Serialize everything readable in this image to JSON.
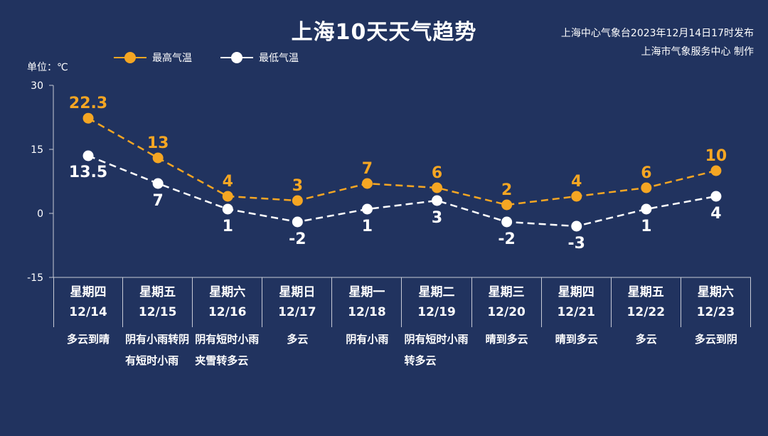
{
  "title": "上海10天天气趋势",
  "source_line1": "上海中心气象台2023年12月14日17时发布",
  "source_line2": "上海市气象服务中心 制作",
  "unit_label": "单位：℃",
  "colors": {
    "background": "#21335f",
    "high": "#f5a623",
    "low": "#ffffff"
  },
  "chart_data": {
    "type": "line",
    "ylim": [
      -15,
      30
    ],
    "yticks": [
      "30",
      "15",
      "0",
      "-15"
    ],
    "categories": [
      "12/14",
      "12/15",
      "12/16",
      "12/17",
      "12/18",
      "12/19",
      "12/20",
      "12/21",
      "12/22",
      "12/23"
    ],
    "series": [
      {
        "name": "最高气温",
        "values": [
          22.3,
          13,
          4,
          3,
          7,
          6,
          2,
          4,
          6,
          10
        ],
        "labels": [
          "22.3",
          "13",
          "4",
          "3",
          "7",
          "6",
          "2",
          "4",
          "6",
          "10"
        ]
      },
      {
        "name": "最低气温",
        "values": [
          13.5,
          7,
          1,
          -2,
          1,
          3,
          -2,
          -3,
          1,
          4
        ],
        "labels": [
          "13.5",
          "7",
          "1",
          "-2",
          "1",
          "3",
          "-2",
          "-3",
          "1",
          "4"
        ]
      }
    ],
    "legend_position": "top-left",
    "grid": false
  },
  "days": [
    {
      "weekday": "星期四",
      "date": "12/14",
      "weather": "多云到晴"
    },
    {
      "weekday": "星期五",
      "date": "12/15",
      "weather": "阴有小雨转阴有短时小雨"
    },
    {
      "weekday": "星期六",
      "date": "12/16",
      "weather": "阴有短时小雨夹雪转多云"
    },
    {
      "weekday": "星期日",
      "date": "12/17",
      "weather": "多云"
    },
    {
      "weekday": "星期一",
      "date": "12/18",
      "weather": "阴有小雨"
    },
    {
      "weekday": "星期二",
      "date": "12/19",
      "weather": "阴有短时小雨转多云"
    },
    {
      "weekday": "星期三",
      "date": "12/20",
      "weather": "晴到多云"
    },
    {
      "weekday": "星期四",
      "date": "12/21",
      "weather": "晴到多云"
    },
    {
      "weekday": "星期五",
      "date": "12/22",
      "weather": "多云"
    },
    {
      "weekday": "星期六",
      "date": "12/23",
      "weather": "多云到阴"
    }
  ]
}
